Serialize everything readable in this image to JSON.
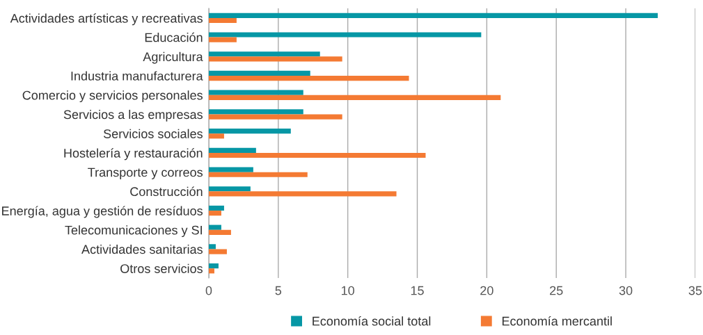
{
  "chart_data": {
    "type": "bar",
    "orientation": "horizontal",
    "categories": [
      "Actividades artísticas y recreativas",
      "Educación",
      "Agricultura",
      "Industria manufacturera",
      "Comercio y servicios personales",
      "Servicios a las empresas",
      "Servicios sociales",
      "Hostelería y restauración",
      "Transporte y correos",
      "Construcción",
      "Energía, agua y gestión de resíduos",
      "Telecomunicaciones y SI",
      "Actividades sanitarias",
      "Otros servicios"
    ],
    "series": [
      {
        "name": "Economía social total",
        "color": "#0697a5",
        "values": [
          32.3,
          19.6,
          8.0,
          7.3,
          6.8,
          6.8,
          5.9,
          3.4,
          3.2,
          3.0,
          1.1,
          0.9,
          0.5,
          0.7
        ]
      },
      {
        "name": "Economía mercantil",
        "color": "#f47a33",
        "values": [
          2.0,
          2.0,
          9.6,
          14.4,
          21.0,
          9.6,
          1.1,
          15.6,
          7.1,
          13.5,
          0.9,
          1.6,
          1.3,
          0.4
        ]
      }
    ],
    "xlim": [
      0,
      35
    ],
    "xticks": [
      0,
      5,
      10,
      15,
      20,
      25,
      30,
      35
    ],
    "grid": "x",
    "legend": "bottom"
  }
}
